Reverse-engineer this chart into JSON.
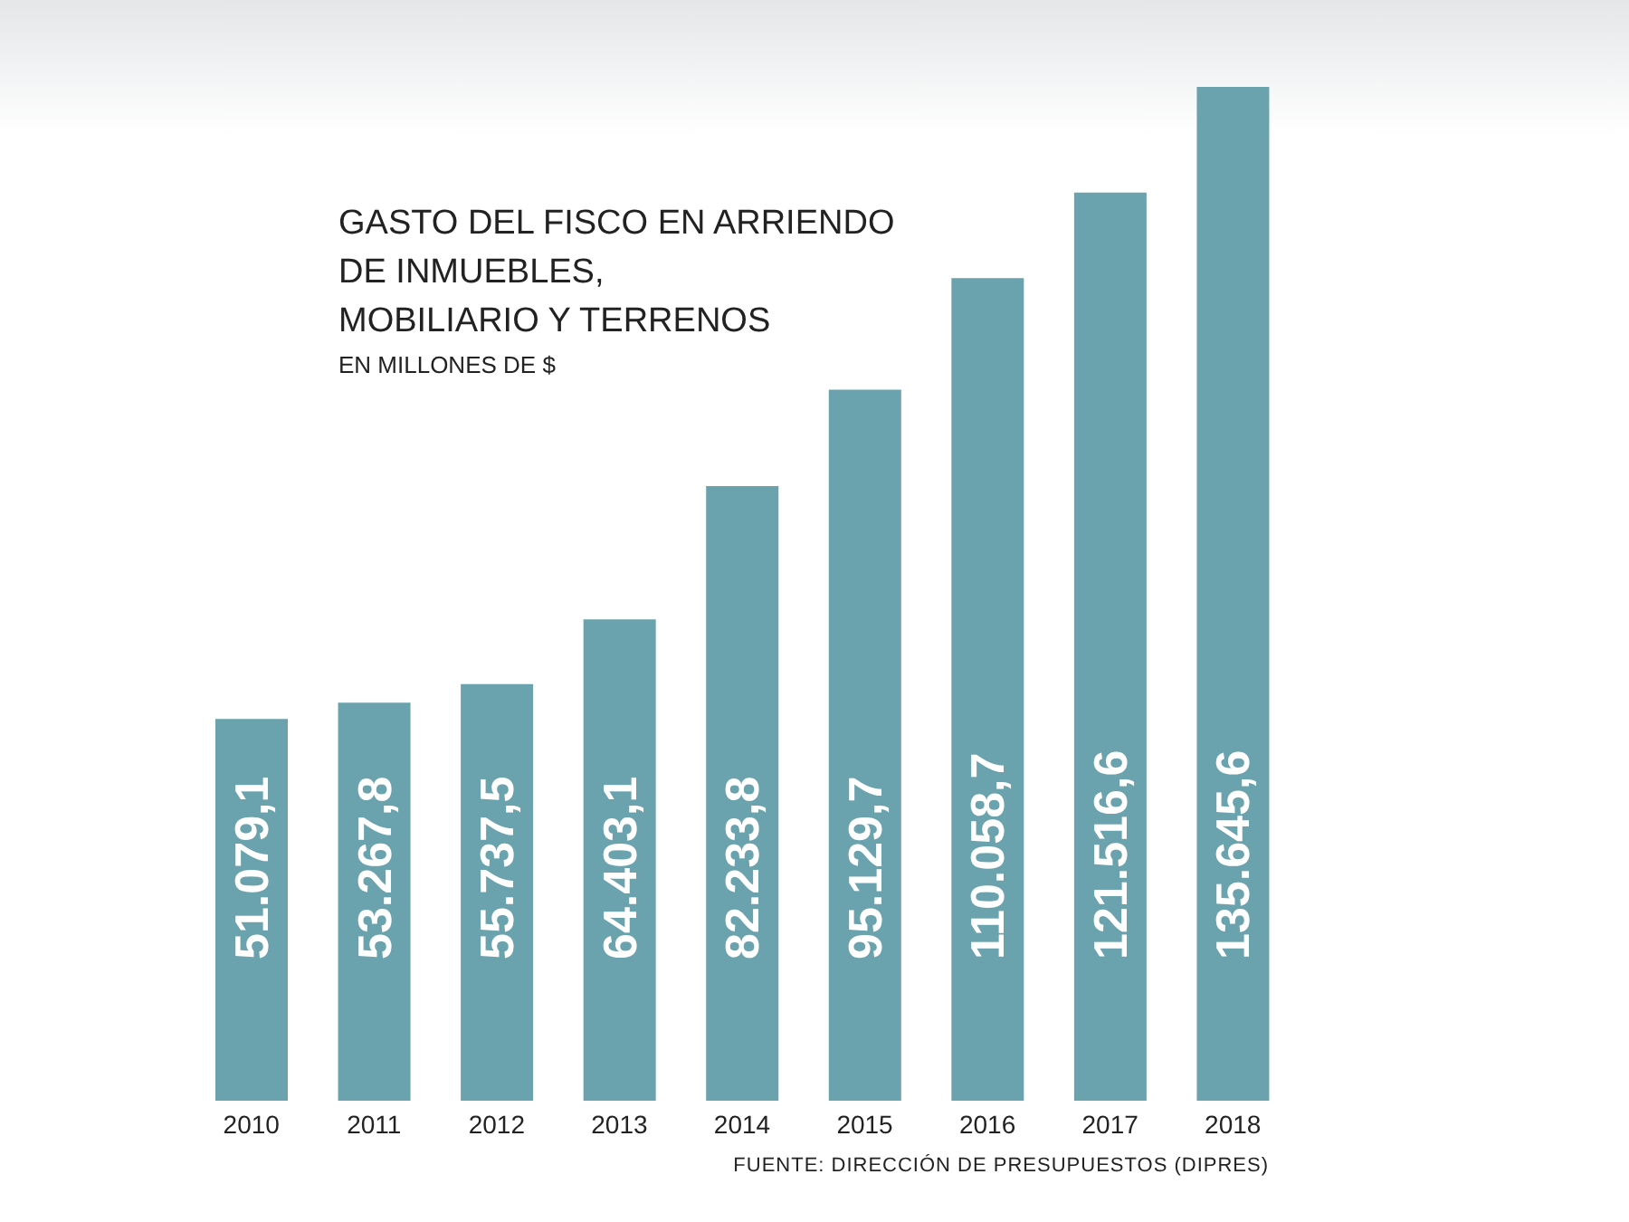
{
  "chart_data": {
    "type": "bar",
    "title": "GASTO DEL FISCO EN ARRIENDO\nDE INMUEBLES,\nMOBILIARIO Y TERRENOS",
    "subtitle": "EN MILLONES DE $",
    "annotations": [
      "FUENTE: DIRECCIÓN DE PRESUPUESTOS (DIPRES)"
    ],
    "categories": [
      "2010",
      "2011",
      "2012",
      "2013",
      "2014",
      "2015",
      "2016",
      "2017",
      "2018"
    ],
    "values": [
      51079.1,
      53267.8,
      55737.5,
      64403.1,
      82233.8,
      95129.7,
      110058.7,
      121516.6,
      135645.6
    ],
    "value_labels": [
      "51.079,1",
      "53.267,8",
      "55.737,5",
      "64.403,1",
      "82.233,8",
      "95.129,7",
      "110.058,7",
      "121.516,6",
      "135.645,6"
    ],
    "color": "#6aa3ad",
    "grid": false,
    "legend": false
  }
}
